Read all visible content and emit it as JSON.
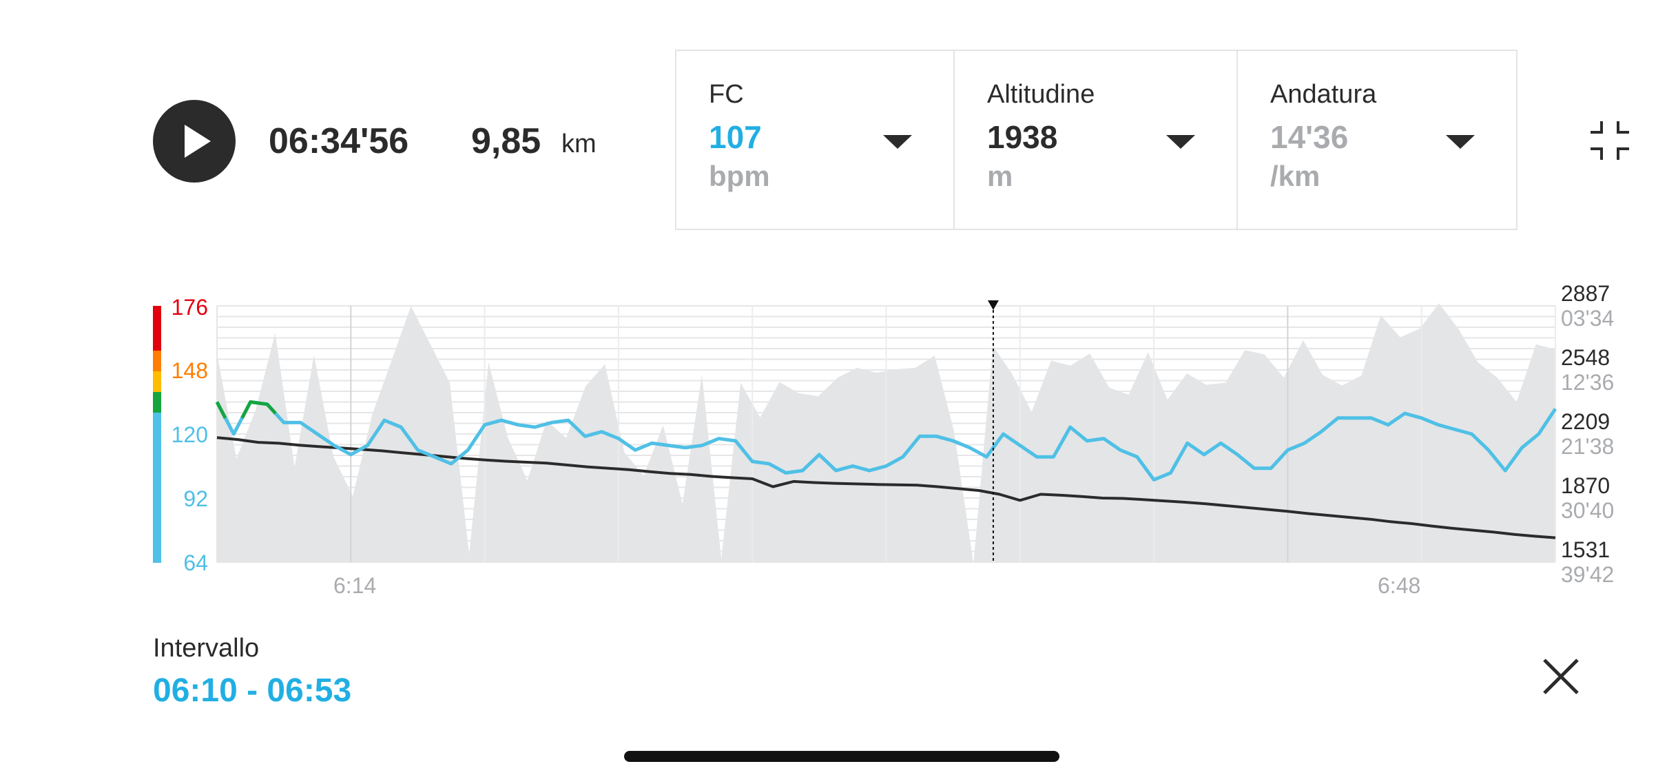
{
  "playback": {
    "duration": "06:34'56",
    "distance": "9,85",
    "distance_unit": "km"
  },
  "metrics": [
    {
      "label": "FC",
      "value": "107",
      "unit": "bpm",
      "value_color": "#21afe3"
    },
    {
      "label": "Altitudine",
      "value": "1938",
      "unit": "m",
      "value_color": "#2b2b2b"
    },
    {
      "label": "Andatura",
      "value": "14'36",
      "unit": "/km",
      "value_color": "#a9abae"
    }
  ],
  "chart": {
    "hr_axis_labels": [
      "176",
      "148",
      "120",
      "92",
      "64"
    ],
    "hr_axis_colors": [
      "#e2000f",
      "#ff7d00",
      "#4fc0e6",
      "#4fc0e6",
      "#4fc0e6"
    ],
    "hr_zone_colors": [
      "#e2000f",
      "#ff7d00",
      "#ffbc00",
      "#15a53f",
      "#4fc0e6"
    ],
    "altitude_axis_labels": [
      "2887",
      "2548",
      "2209",
      "1870",
      "1531"
    ],
    "pace_axis_labels": [
      "03'34",
      "12'36",
      "21'38",
      "30'40",
      "39'42"
    ],
    "x_labels": [
      "6:14",
      "6:48"
    ]
  },
  "chart_data": {
    "type": "line",
    "x_ticks": [
      "6:14",
      "6:48"
    ],
    "y_left": {
      "label": "",
      "ticks": [
        64,
        92,
        120,
        148,
        176
      ],
      "range": [
        64,
        176
      ]
    },
    "y_right_altitude": {
      "ticks": [
        1531,
        1870,
        2209,
        2548,
        2887
      ],
      "range": [
        1531,
        2887
      ]
    },
    "y_right_pace": {
      "ticks": [
        "03'34",
        "12'36",
        "21'38",
        "30'40",
        "39'42"
      ]
    },
    "cursor_time": "06:34'56",
    "series": [
      {
        "name": "FC",
        "unit": "bpm",
        "color": "#4fc0e6",
        "values": [
          134,
          120,
          134,
          133,
          125,
          125,
          120,
          115,
          111,
          115,
          126,
          123,
          113,
          110,
          107,
          113,
          124,
          126,
          124,
          123,
          125,
          126,
          119,
          121,
          118,
          113,
          116,
          115,
          114,
          115,
          118,
          117,
          108,
          107,
          103,
          104,
          111,
          104,
          106,
          104,
          106,
          110,
          119,
          119,
          117,
          114,
          110,
          120,
          115,
          110,
          110,
          123,
          117,
          118,
          113,
          110,
          100,
          103,
          116,
          111,
          116,
          111,
          105,
          105,
          113,
          116,
          121,
          127,
          127,
          127,
          124,
          129,
          127,
          124,
          122,
          120,
          113,
          104,
          114,
          120,
          131
        ],
        "zone_segments": [
          {
            "from_index": 0,
            "to_index": 0,
            "color": "#15a53f"
          },
          {
            "from_index": 2,
            "to_index": 3,
            "color": "#15a53f"
          }
        ]
      },
      {
        "name": "Altitudine",
        "unit": "m",
        "color": "#2b2b2b",
        "values": [
          2190,
          2180,
          2165,
          2160,
          2150,
          2142,
          2135,
          2128,
          2120,
          2110,
          2100,
          2090,
          2080,
          2072,
          2065,
          2060,
          2055,
          2045,
          2035,
          2028,
          2020,
          2010,
          2000,
          1995,
          1985,
          1978,
          1972,
          1930,
          1958,
          1952,
          1948,
          1945,
          1942,
          1940,
          1938,
          1930,
          1920,
          1910,
          1890,
          1858,
          1890,
          1885,
          1878,
          1870,
          1868,
          1862,
          1855,
          1848,
          1840,
          1830,
          1820,
          1810,
          1800,
          1788,
          1778,
          1768,
          1758,
          1745,
          1735,
          1722,
          1710,
          1700,
          1690,
          1678,
          1668,
          1660
        ],
        "cursor_value": 1938
      },
      {
        "name": "Andatura",
        "unit": "/km",
        "color": "#e4e5e7",
        "values_min_per_km": [
          10.2,
          25.1,
          18.2,
          7.4,
          26.3,
          10.5,
          24.8,
          30.4,
          18.9,
          11.3,
          3.6,
          9.0,
          14.4,
          38.6,
          11.5,
          22.2,
          28.2,
          19.7,
          22.2,
          14.9,
          11.8,
          24.2,
          27.5,
          20.4,
          31.5,
          13.3,
          39.2,
          14.4,
          19.3,
          14.3,
          15.9,
          16.3,
          13.7,
          12.3,
          13.0,
          12.5,
          12.3,
          10.6,
          21.3,
          39.9,
          9.2,
          13.2,
          18.5,
          11.3,
          12.0,
          10.3,
          15.1,
          16.1,
          10.1,
          16.8,
          13.1,
          14.7,
          14.4,
          9.8,
          10.4,
          13.7,
          8.4,
          13.3,
          14.8,
          13.4,
          4.9,
          8.0,
          6.8,
          3.2,
          6.8,
          11.5,
          13.7,
          17.1,
          9.0,
          9.7
        ]
      }
    ]
  },
  "interval": {
    "label": "Intervallo",
    "value": "06:10 - 06:53"
  }
}
